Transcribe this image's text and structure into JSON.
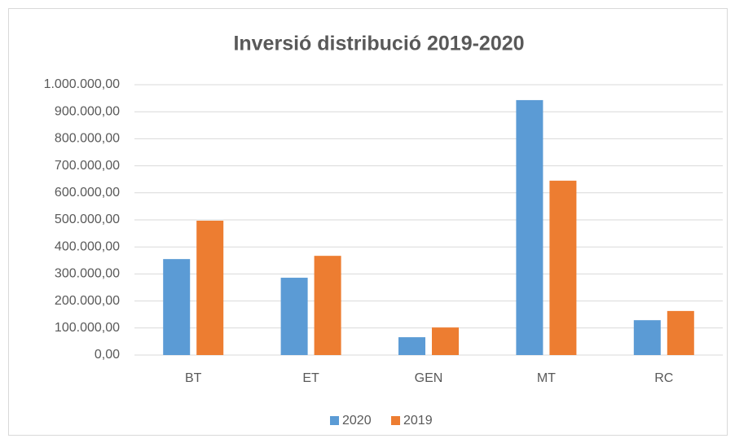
{
  "chart_data": {
    "type": "bar",
    "title": "Inversió distribució 2019-2020",
    "categories": [
      "BT",
      "ET",
      "GEN",
      "MT",
      "RC"
    ],
    "series": [
      {
        "name": "2020",
        "color": "#5b9bd5",
        "values": [
          355000,
          286000,
          66000,
          943000,
          129000
        ]
      },
      {
        "name": "2019",
        "color": "#ed7d31",
        "values": [
          497000,
          367000,
          102000,
          645000,
          163000
        ]
      }
    ],
    "ylim": [
      0,
      1000000
    ],
    "yticks": [
      {
        "value": 0,
        "label": "0,00"
      },
      {
        "value": 100000,
        "label": "100.000,00"
      },
      {
        "value": 200000,
        "label": "200.000,00"
      },
      {
        "value": 300000,
        "label": "300.000,00"
      },
      {
        "value": 400000,
        "label": "400.000,00"
      },
      {
        "value": 500000,
        "label": "500.000,00"
      },
      {
        "value": 600000,
        "label": "600.000,00"
      },
      {
        "value": 700000,
        "label": "700.000,00"
      },
      {
        "value": 800000,
        "label": "800.000,00"
      },
      {
        "value": 900000,
        "label": "900.000,00"
      },
      {
        "value": 1000000,
        "label": "1.000.000,00"
      }
    ],
    "grid": true,
    "legend": "bottom"
  }
}
